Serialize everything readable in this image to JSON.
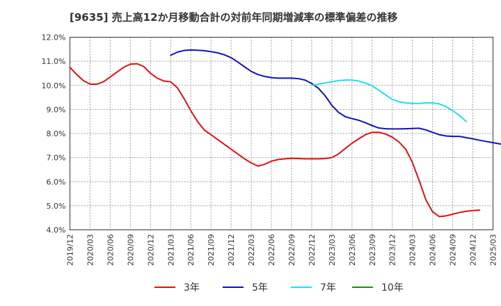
{
  "chart_data": {
    "type": "line",
    "title": "[9635]  売上高12か月移動合計の対前年同期増減率の標準偏差の推移",
    "xlabel": "",
    "ylabel": "",
    "ylim": [
      4.0,
      12.0
    ],
    "y_ticks": [
      "4.0%",
      "5.0%",
      "6.0%",
      "7.0%",
      "8.0%",
      "9.0%",
      "10.0%",
      "11.0%",
      "12.0%"
    ],
    "x_ticks": [
      "2019/12",
      "2020/03",
      "2020/06",
      "2020/09",
      "2020/12",
      "2021/03",
      "2021/06",
      "2021/09",
      "2021/12",
      "2022/03",
      "2022/06",
      "2022/09",
      "2022/12",
      "2023/03",
      "2023/06",
      "2023/09",
      "2023/12",
      "2024/03",
      "2024/06",
      "2024/09",
      "2024/12",
      "2025/03"
    ],
    "grid": true,
    "legend_position": "bottom",
    "series": [
      {
        "name": "3年",
        "color": "#dd1111",
        "start": "2019/12",
        "values": [
          10.75,
          10.45,
          10.2,
          10.05,
          10.05,
          10.15,
          10.35,
          10.55,
          10.75,
          10.88,
          10.9,
          10.78,
          10.5,
          10.3,
          10.18,
          10.15,
          9.9,
          9.45,
          8.95,
          8.5,
          8.15,
          7.95,
          7.75,
          7.55,
          7.35,
          7.15,
          6.95,
          6.78,
          6.65,
          6.72,
          6.85,
          6.92,
          6.95,
          6.97,
          6.96,
          6.95,
          6.95,
          6.95,
          6.96,
          7.0,
          7.15,
          7.38,
          7.6,
          7.78,
          7.95,
          8.05,
          8.05,
          7.98,
          7.85,
          7.65,
          7.35,
          6.8,
          6.05,
          5.25,
          4.75,
          4.55,
          4.58,
          4.65,
          4.72,
          4.77,
          4.8,
          4.82
        ]
      },
      {
        "name": "5年",
        "color": "#1111bb",
        "start": "2021/03",
        "values": [
          11.25,
          11.38,
          11.45,
          11.47,
          11.46,
          11.44,
          11.4,
          11.35,
          11.27,
          11.15,
          10.97,
          10.77,
          10.58,
          10.45,
          10.37,
          10.32,
          10.3,
          10.3,
          10.3,
          10.28,
          10.22,
          10.08,
          9.88,
          9.57,
          9.17,
          8.88,
          8.7,
          8.62,
          8.55,
          8.45,
          8.33,
          8.23,
          8.2,
          8.19,
          8.19,
          8.2,
          8.21,
          8.22,
          8.15,
          8.05,
          7.95,
          7.9,
          7.88,
          7.88,
          7.83,
          7.78,
          7.72,
          7.67,
          7.62,
          7.57,
          7.52,
          7.47
        ]
      },
      {
        "name": "7年",
        "color": "#22ddee",
        "start": "2022/12",
        "values": [
          10.0,
          10.05,
          10.1,
          10.15,
          10.2,
          10.22,
          10.22,
          10.18,
          10.1,
          9.98,
          9.8,
          9.6,
          9.42,
          9.32,
          9.27,
          9.25,
          9.25,
          9.27,
          9.27,
          9.23,
          9.12,
          8.95,
          8.75,
          8.5
        ]
      },
      {
        "name": "10年",
        "color": "#228822",
        "start": "2025/03",
        "values": []
      }
    ]
  }
}
